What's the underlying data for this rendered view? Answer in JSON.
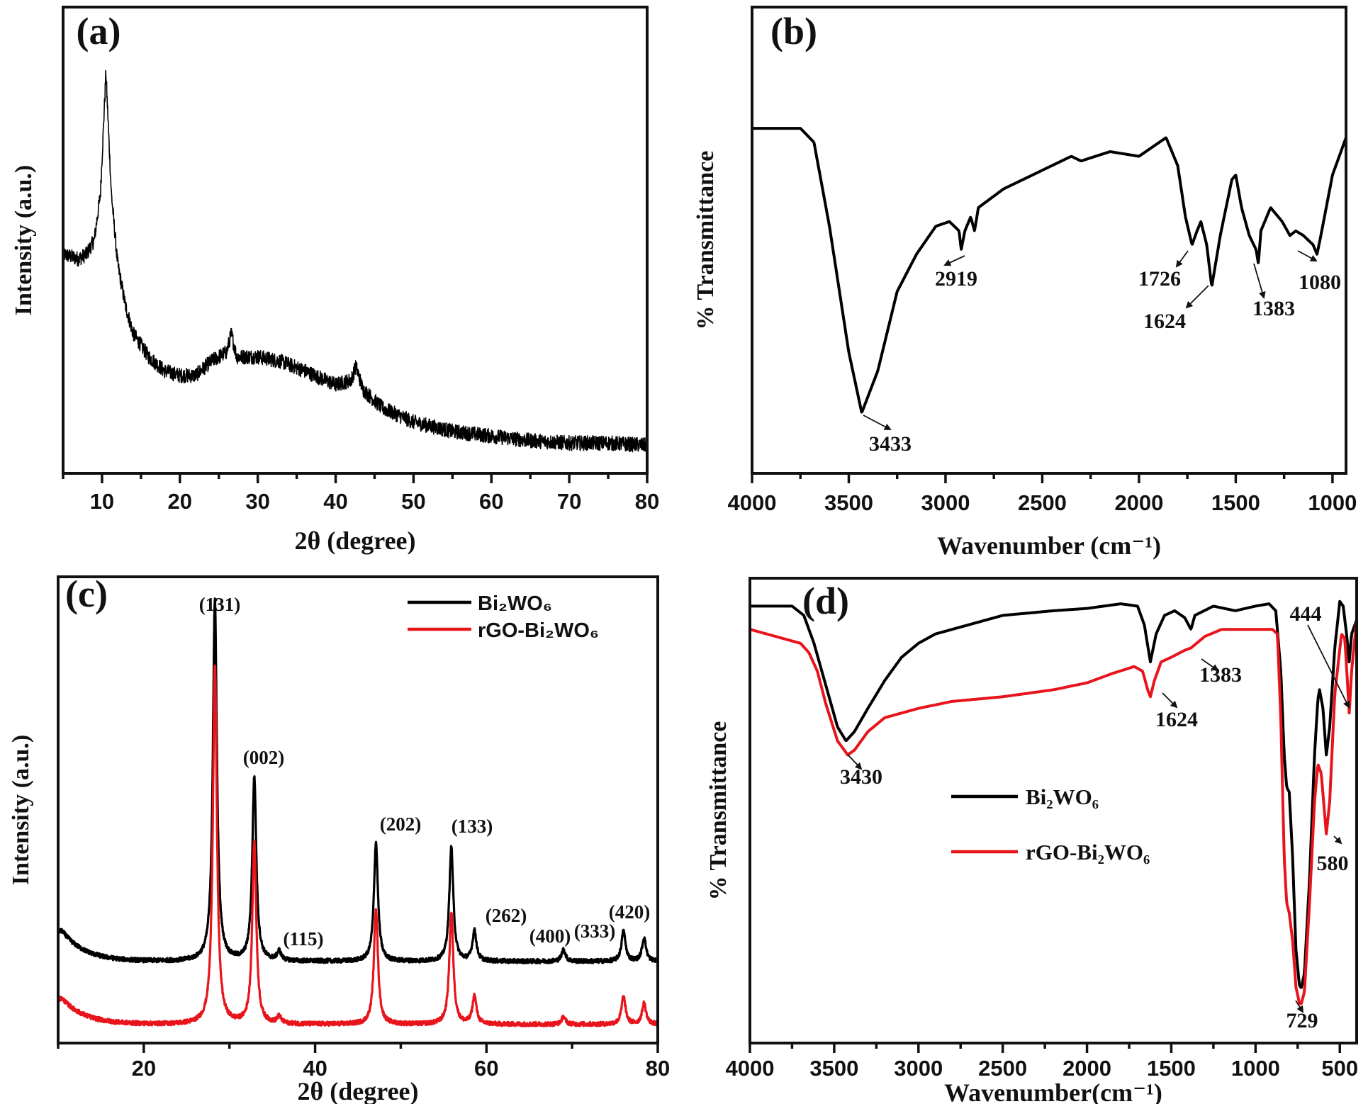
{
  "chart_data": [
    {
      "type": "line",
      "panel_label": "(a)",
      "xlabel": "2θ (degree)",
      "ylabel": "Intensity (a.u.)",
      "xlim": [
        5,
        80
      ],
      "xticks": [
        "10",
        "20",
        "30",
        "40",
        "50",
        "60",
        "70",
        "80"
      ],
      "grid": false,
      "series": [
        {
          "color": "#000000",
          "noisy": true,
          "points": [
            [
              5,
              47
            ],
            [
              7,
              46
            ],
            [
              8,
              47
            ],
            [
              9,
              50
            ],
            [
              9.8,
              60
            ],
            [
              10.5,
              86
            ],
            [
              11.2,
              60
            ],
            [
              12,
              45
            ],
            [
              13,
              36
            ],
            [
              14,
              30
            ],
            [
              16,
              25
            ],
            [
              18,
              22
            ],
            [
              20,
              21
            ],
            [
              22,
              21
            ],
            [
              24,
              24
            ],
            [
              26,
              26
            ],
            [
              26.6,
              30
            ],
            [
              27.3,
              25
            ],
            [
              30,
              25
            ],
            [
              33,
              24
            ],
            [
              36,
              22
            ],
            [
              40,
              19
            ],
            [
              42,
              20
            ],
            [
              42.6,
              23
            ],
            [
              43.5,
              18
            ],
            [
              46,
              14
            ],
            [
              50,
              11
            ],
            [
              55,
              9
            ],
            [
              60,
              8
            ],
            [
              65,
              7
            ],
            [
              70,
              6.5
            ],
            [
              75,
              6.5
            ],
            [
              80,
              6
            ]
          ]
        }
      ],
      "annotations": []
    },
    {
      "type": "line",
      "panel_label": "(b)",
      "xlabel": "Wavenumber (cm⁻¹)",
      "ylabel": "% Transmittance",
      "xlim": [
        4000,
        930
      ],
      "xticks": [
        "4000",
        "3500",
        "3000",
        "2500",
        "2000",
        "1500",
        "1000"
      ],
      "grid": false,
      "series": [
        {
          "color": "#000000",
          "points": [
            [
              4000,
              74
            ],
            [
              3750,
              74
            ],
            [
              3680,
              71
            ],
            [
              3600,
              53
            ],
            [
              3500,
              26
            ],
            [
              3433,
              13
            ],
            [
              3350,
              22
            ],
            [
              3250,
              39
            ],
            [
              3150,
              47
            ],
            [
              3050,
              53
            ],
            [
              2980,
              54
            ],
            [
              2930,
              52
            ],
            [
              2919,
              48
            ],
            [
              2900,
              52
            ],
            [
              2870,
              55
            ],
            [
              2850,
              52
            ],
            [
              2830,
              57
            ],
            [
              2700,
              61
            ],
            [
              2500,
              65
            ],
            [
              2350,
              68
            ],
            [
              2300,
              67
            ],
            [
              2150,
              69
            ],
            [
              2000,
              68
            ],
            [
              1860,
              72
            ],
            [
              1800,
              66
            ],
            [
              1760,
              55
            ],
            [
              1726,
              49
            ],
            [
              1700,
              52
            ],
            [
              1680,
              54
            ],
            [
              1650,
              49
            ],
            [
              1624,
              40
            ],
            [
              1580,
              51
            ],
            [
              1520,
              63
            ],
            [
              1500,
              64
            ],
            [
              1470,
              57
            ],
            [
              1430,
              51
            ],
            [
              1395,
              48
            ],
            [
              1383,
              45
            ],
            [
              1370,
              52
            ],
            [
              1320,
              57
            ],
            [
              1260,
              54
            ],
            [
              1220,
              51
            ],
            [
              1190,
              52
            ],
            [
              1150,
              51
            ],
            [
              1100,
              49
            ],
            [
              1080,
              47
            ],
            [
              1060,
              51
            ],
            [
              1000,
              64
            ],
            [
              930,
              72
            ]
          ]
        }
      ],
      "annotations": [
        "3433",
        "2919",
        "1726",
        "1624",
        "1383",
        "1080"
      ]
    },
    {
      "type": "line",
      "panel_label": "(c)",
      "xlabel": "2θ (degree)",
      "ylabel": "Intensity (a.u.)",
      "xlim": [
        10,
        80
      ],
      "xticks": [
        "20",
        "40",
        "60",
        "80"
      ],
      "grid": false,
      "legend_position": "top-right",
      "series": [
        {
          "name": "Bi₂WO₆",
          "color": "#000000",
          "baseline": 17.5,
          "low_angle": 24,
          "peaks": [
            [
              28.3,
              95
            ],
            [
              32.9,
              57
            ],
            [
              35.8,
              19.5
            ],
            [
              47.1,
              43
            ],
            [
              55.9,
              42
            ],
            [
              58.6,
              24
            ],
            [
              69,
              20
            ],
            [
              76,
              24
            ],
            [
              78.4,
              22.5
            ]
          ]
        },
        {
          "name": "rGO-Bi₂WO₆",
          "color": "#e8141b",
          "baseline": 4,
          "low_angle": 9.5,
          "peaks": [
            [
              28.3,
              81
            ],
            [
              32.9,
              43
            ],
            [
              35.8,
              5.5
            ],
            [
              47.1,
              29
            ],
            [
              55.9,
              28
            ],
            [
              58.6,
              10
            ],
            [
              69,
              5.6
            ],
            [
              76,
              10
            ],
            [
              78.4,
              8.5
            ]
          ]
        }
      ],
      "annotations": [
        "(131)",
        "(002)",
        "(115)",
        "(202)",
        "(133)",
        "(262)",
        "(400)",
        "(333)",
        "(420)"
      ]
    },
    {
      "type": "line",
      "panel_label": "(d)",
      "xlabel": "Wavenumber(cm⁻¹)",
      "ylabel": "% Transmittance",
      "xlim": [
        4000,
        400
      ],
      "xticks": [
        "4000",
        "3500",
        "3000",
        "2500",
        "2000",
        "1500",
        "1000",
        "500"
      ],
      "grid": false,
      "legend_position": "center-left",
      "series": [
        {
          "name": "Bi₂WO₆",
          "color": "#000000",
          "points": [
            [
              4000,
              94
            ],
            [
              3750,
              94
            ],
            [
              3680,
              92
            ],
            [
              3620,
              86
            ],
            [
              3550,
              77
            ],
            [
              3480,
              68
            ],
            [
              3430,
              65
            ],
            [
              3380,
              67
            ],
            [
              3300,
              72
            ],
            [
              3200,
              78
            ],
            [
              3100,
              83
            ],
            [
              3000,
              86
            ],
            [
              2900,
              88
            ],
            [
              2700,
              90
            ],
            [
              2500,
              92
            ],
            [
              2200,
              93
            ],
            [
              2000,
              93.5
            ],
            [
              1800,
              94.5
            ],
            [
              1700,
              94
            ],
            [
              1660,
              90
            ],
            [
              1624,
              82
            ],
            [
              1590,
              88
            ],
            [
              1540,
              92
            ],
            [
              1480,
              93
            ],
            [
              1420,
              91.5
            ],
            [
              1383,
              89
            ],
            [
              1360,
              92
            ],
            [
              1250,
              94
            ],
            [
              1120,
              93
            ],
            [
              1000,
              94
            ],
            [
              920,
              94.5
            ],
            [
              880,
              93
            ],
            [
              850,
              80
            ],
            [
              830,
              62
            ],
            [
              815,
              55
            ],
            [
              800,
              54
            ],
            [
              780,
              40
            ],
            [
              760,
              20
            ],
            [
              740,
              12.5
            ],
            [
              729,
              11.8
            ],
            [
              710,
              15
            ],
            [
              680,
              35
            ],
            [
              650,
              62
            ],
            [
              630,
              74
            ],
            [
              620,
              76
            ],
            [
              600,
              72
            ],
            [
              580,
              62
            ],
            [
              560,
              68
            ],
            [
              530,
              85
            ],
            [
              500,
              95
            ],
            [
              480,
              94
            ],
            [
              460,
              88
            ],
            [
              444,
              82
            ],
            [
              430,
              88
            ],
            [
              400,
              91
            ]
          ]
        },
        {
          "name": "rGO-Bi₂WO₆",
          "color": "#e8141b",
          "points": [
            [
              4000,
              89
            ],
            [
              3800,
              87
            ],
            [
              3700,
              86
            ],
            [
              3650,
              84
            ],
            [
              3600,
              80
            ],
            [
              3550,
              73
            ],
            [
              3480,
              65
            ],
            [
              3420,
              62
            ],
            [
              3380,
              63
            ],
            [
              3300,
              67
            ],
            [
              3200,
              70
            ],
            [
              3000,
              72
            ],
            [
              2800,
              73.5
            ],
            [
              2500,
              74.5
            ],
            [
              2200,
              76
            ],
            [
              2000,
              77.5
            ],
            [
              1850,
              79.5
            ],
            [
              1720,
              81
            ],
            [
              1670,
              80
            ],
            [
              1640,
              76
            ],
            [
              1624,
              74.5
            ],
            [
              1600,
              78
            ],
            [
              1560,
              82
            ],
            [
              1500,
              83
            ],
            [
              1420,
              84.5
            ],
            [
              1383,
              85
            ],
            [
              1300,
              87.5
            ],
            [
              1200,
              89
            ],
            [
              1000,
              89
            ],
            [
              900,
              89
            ],
            [
              870,
              88
            ],
            [
              850,
              70
            ],
            [
              830,
              40
            ],
            [
              815,
              30
            ],
            [
              800,
              28
            ],
            [
              780,
              22
            ],
            [
              760,
              12
            ],
            [
              740,
              8.6
            ],
            [
              729,
              8.4
            ],
            [
              710,
              11
            ],
            [
              680,
              30
            ],
            [
              650,
              52
            ],
            [
              630,
              60
            ],
            [
              610,
              58
            ],
            [
              580,
              45
            ],
            [
              560,
              52
            ],
            [
              530,
              75
            ],
            [
              490,
              88
            ],
            [
              470,
              87
            ],
            [
              444,
              71
            ],
            [
              430,
              80
            ],
            [
              400,
              91
            ]
          ]
        }
      ],
      "annotations": [
        "3430",
        "1624",
        "1383",
        "444",
        "580",
        "729"
      ]
    }
  ]
}
